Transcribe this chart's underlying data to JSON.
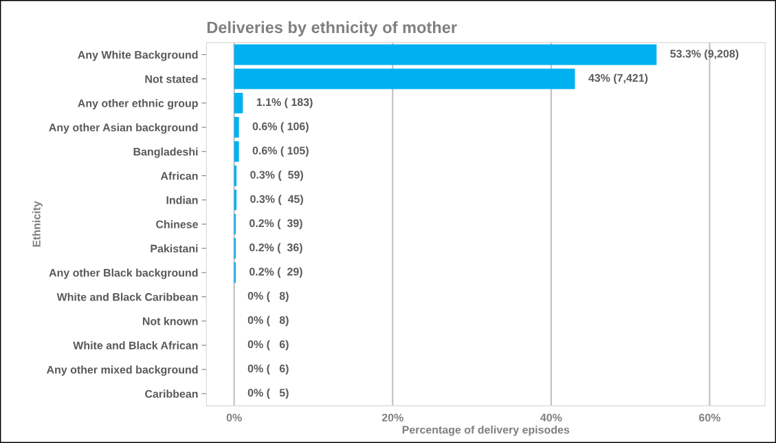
{
  "chart_data": {
    "type": "bar",
    "orientation": "horizontal",
    "title": "Deliveries by ethnicity of mother",
    "xlabel": "Percentage of delivery episodes",
    "ylabel": "Ethnicity",
    "categories": [
      "Any White Background",
      "Not stated",
      "Any other ethnic group",
      "Any other Asian background",
      "Bangladeshi",
      "African",
      "Indian",
      "Chinese",
      "Pakistani",
      "Any other Black background",
      "White and Black Caribbean",
      "Not known",
      "White and Black African",
      "Any other mixed background",
      "Caribbean"
    ],
    "values": [
      53.3,
      43,
      1.1,
      0.6,
      0.6,
      0.3,
      0.3,
      0.2,
      0.2,
      0.2,
      0,
      0,
      0,
      0,
      0
    ],
    "value_labels": [
      "53.3% (9,208)",
      "43% (7,421)",
      "1.1% ( 183)",
      "0.6% ( 106)",
      "0.6% ( 105)",
      "0.3% (  59)",
      "0.3% (  45)",
      "0.2% (  39)",
      "0.2% (  36)",
      "0.2% (  29)",
      "0% (   8)",
      "0% (   8)",
      "0% (   6)",
      "0% (   6)",
      "0% (   5)"
    ],
    "color": "#00b0f0",
    "xlim": [
      -3.5,
      67
    ],
    "xticks": [
      {
        "value": 0,
        "label": "0%"
      },
      {
        "value": 20,
        "label": "20%"
      },
      {
        "value": 40,
        "label": "40%"
      },
      {
        "value": 60,
        "label": "60%"
      }
    ],
    "grid": "x"
  }
}
